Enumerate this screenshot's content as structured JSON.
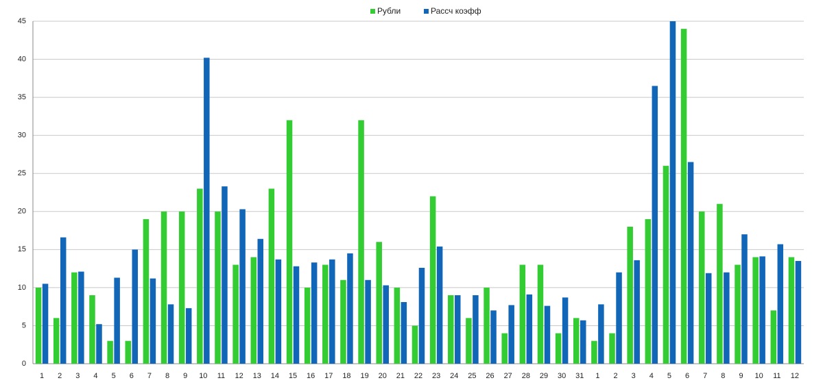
{
  "chart_data": {
    "type": "bar",
    "categories": [
      "1",
      "2",
      "3",
      "4",
      "5",
      "6",
      "7",
      "8",
      "9",
      "10",
      "11",
      "12",
      "13",
      "14",
      "15",
      "16",
      "17",
      "18",
      "19",
      "20",
      "21",
      "22",
      "23",
      "24",
      "25",
      "26",
      "27",
      "28",
      "29",
      "30",
      "31",
      "1",
      "2",
      "3",
      "4",
      "5",
      "6",
      "7",
      "8",
      "9",
      "10",
      "11",
      "12"
    ],
    "series": [
      {
        "name": "Рубли",
        "color": "#33cc33",
        "values": [
          10,
          6,
          12,
          9,
          3,
          3,
          19,
          20,
          20,
          23,
          20,
          13,
          14,
          23,
          32,
          10,
          13,
          11,
          32,
          16,
          10,
          5,
          22,
          9,
          6,
          10,
          4,
          13,
          13,
          4,
          6,
          3,
          4,
          18,
          19,
          26,
          44,
          20,
          21,
          13,
          14,
          7,
          14
        ]
      },
      {
        "name": "Рассч коэфф",
        "color": "#1166b8",
        "values": [
          10.5,
          16.6,
          12.1,
          5.2,
          11.3,
          15,
          11.2,
          7.8,
          7.3,
          40.2,
          23.3,
          20.3,
          16.4,
          13.7,
          12.8,
          13.3,
          13.7,
          14.5,
          11,
          10.3,
          8.1,
          12.6,
          15.4,
          9,
          9,
          7,
          7.7,
          9.1,
          7.6,
          8.7,
          5.7,
          7.8,
          12,
          13.6,
          36.5,
          45,
          26.5,
          11.9,
          12,
          17,
          14.1,
          15.7,
          13.5
        ]
      }
    ],
    "ylim": [
      0,
      45
    ],
    "yticks": [
      0,
      5,
      10,
      15,
      20,
      25,
      30,
      35,
      40,
      45
    ],
    "grid": true
  }
}
